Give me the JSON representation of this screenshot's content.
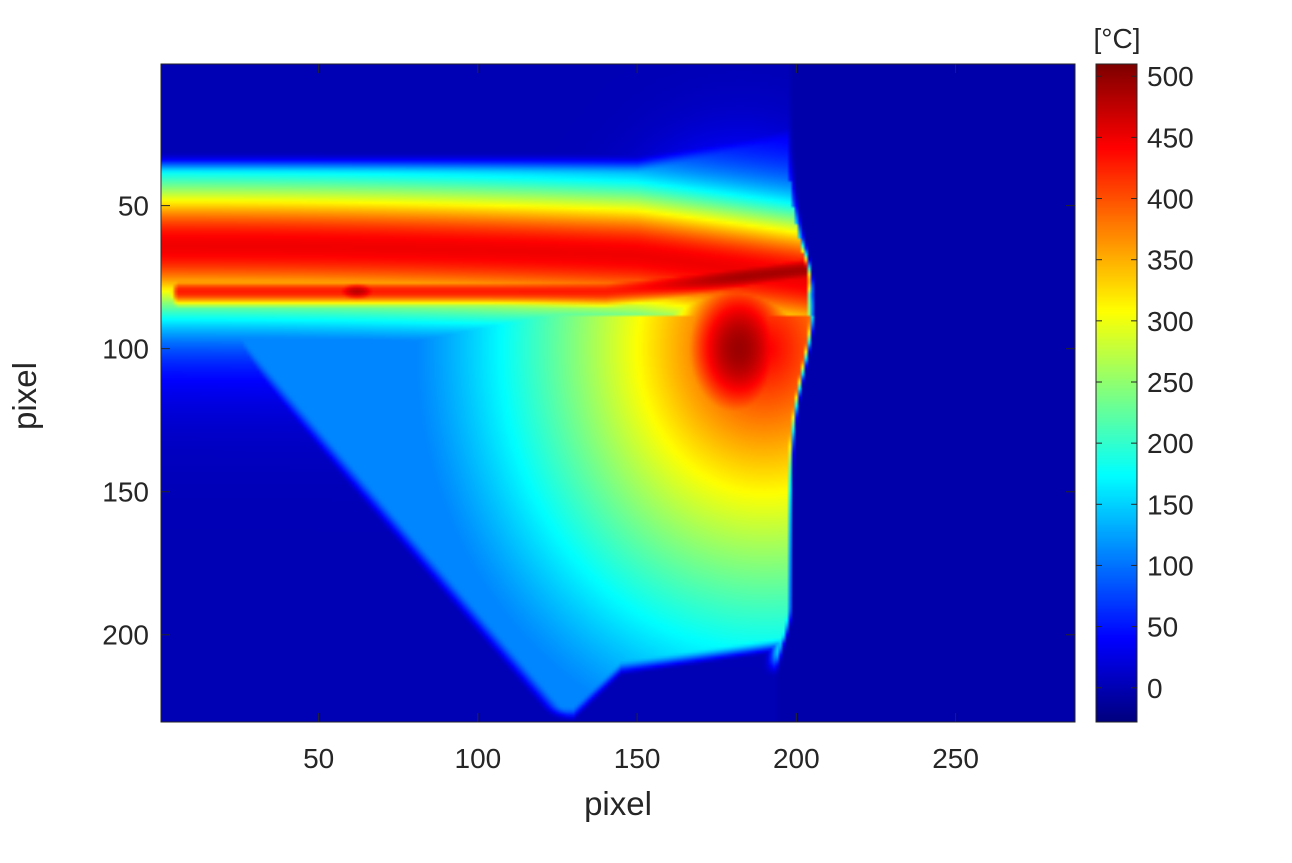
{
  "chart_data": {
    "type": "heatmap",
    "title": "",
    "xlabel": "pixel",
    "ylabel": "pixel",
    "xlim": [
      0.5,
      287.5
    ],
    "ylim": [
      0.5,
      230.5
    ],
    "y_direction": "reverse",
    "grid": false,
    "colormap": "jet",
    "x_ticks": [
      50,
      100,
      150,
      200,
      250
    ],
    "y_ticks": [
      50,
      100,
      150,
      200
    ],
    "colorbar": {
      "label": "[°C]",
      "clim": [
        -28,
        510
      ],
      "ticks": [
        0,
        50,
        100,
        150,
        200,
        250,
        300,
        350,
        400,
        450,
        500
      ]
    },
    "background_value": -5,
    "regions": [
      {
        "name": "upper plume band",
        "x_range": [
          1,
          185
        ],
        "y_center_at_x": [
          [
            1,
            65
          ],
          [
            100,
            67
          ],
          [
            150,
            70
          ],
          [
            185,
            74
          ]
        ],
        "peak_temperature": 350,
        "half_width": 28
      },
      {
        "name": "hot streak",
        "x_range": [
          1,
          195
        ],
        "y_center_at_x": [
          [
            1,
            78
          ],
          [
            60,
            80
          ],
          [
            120,
            80
          ],
          [
            185,
            75
          ]
        ],
        "peak_temperature": 500
      },
      {
        "name": "local hotspot",
        "x": 62,
        "y": 80,
        "peak_temperature": 480
      },
      {
        "name": "hot core",
        "x": 178,
        "y": 95,
        "peak_temperature": 490
      },
      {
        "name": "lower warm zone",
        "x_range": [
          25,
          200
        ],
        "y_range": [
          90,
          228
        ],
        "peak_temperature": 300
      },
      {
        "name": "cut-off edge",
        "x": 200,
        "y_range": [
          40,
          210
        ]
      }
    ]
  }
}
